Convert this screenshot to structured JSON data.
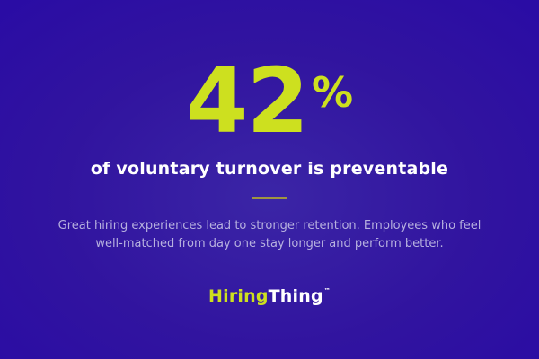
{
  "card": {
    "stat": {
      "value": "42",
      "unit": "%"
    },
    "headline": "of voluntary turnover is preventable",
    "description": {
      "lines": [
        "Great hiring experiences lead to stronger retention. Employees who feel",
        "well-matched from day one stay longer and perform better."
      ]
    },
    "logo": {
      "part1": "Hiring",
      "part2": "Thing",
      "trademark": "™"
    },
    "colors": {
      "background_center": "#3b25a6",
      "background_edge": "#2a0ca4",
      "accent_yellow": "#cde01f",
      "headline_text": "#ffffff",
      "description_text": "#b7b1df",
      "divider": "#a09540"
    }
  }
}
